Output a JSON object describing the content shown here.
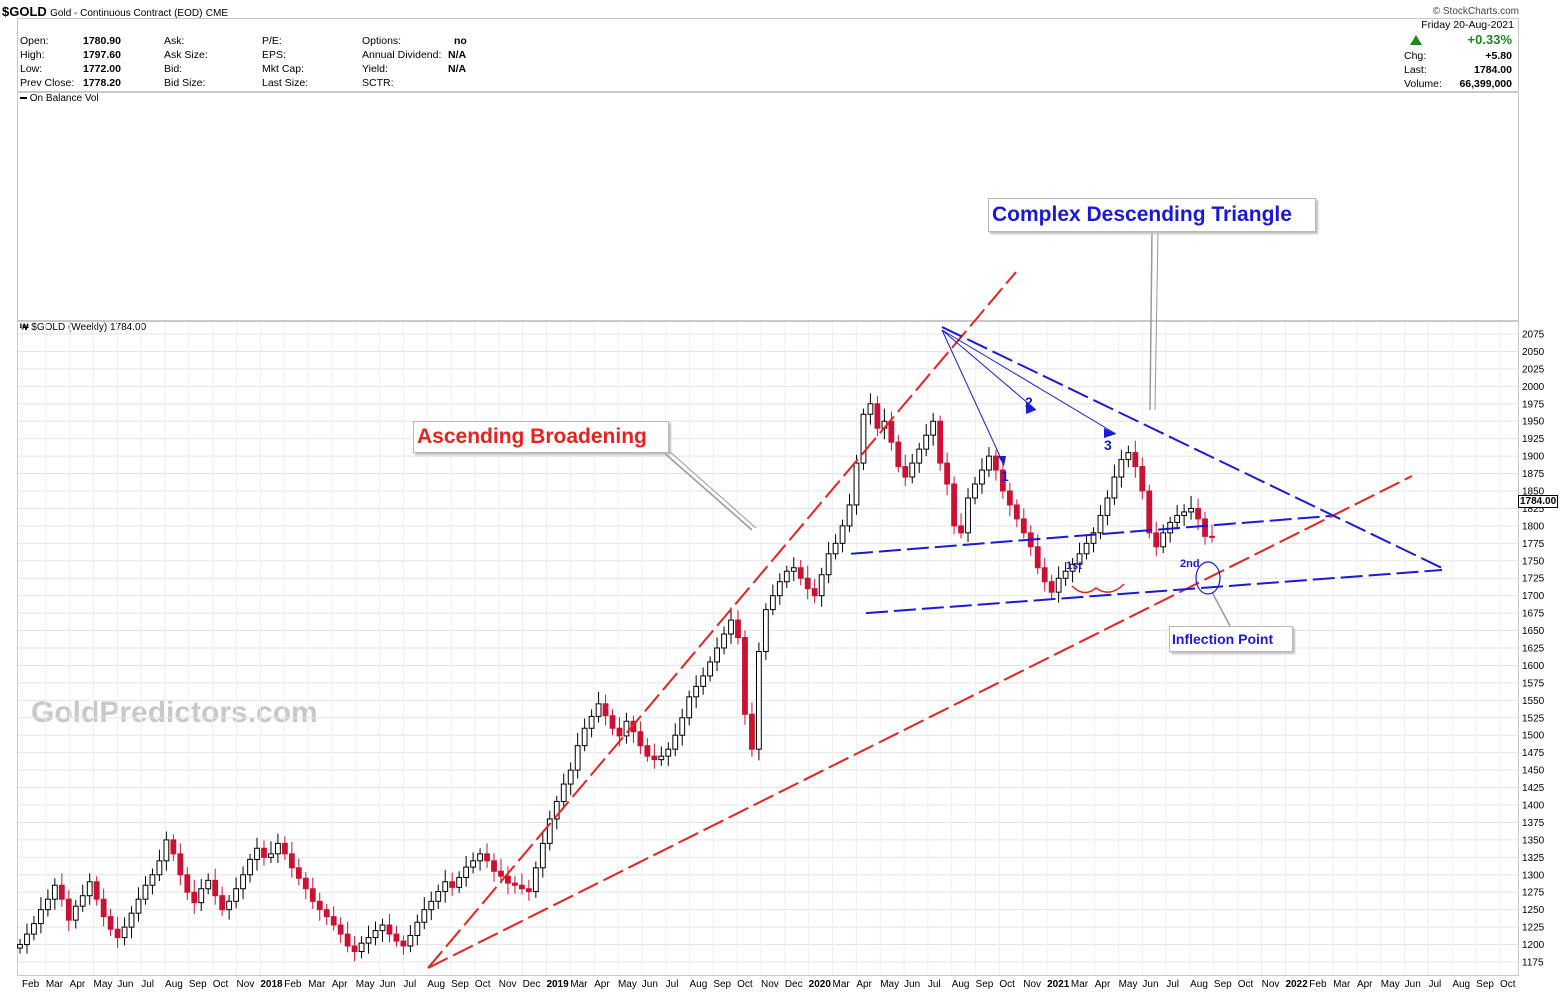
{
  "header": {
    "symbol": "$GOLD",
    "name": "Gold - Continuous Contract (EOD)",
    "exchange": "CME",
    "source": "© StockCharts.com",
    "date": "Friday  20-Aug-2021",
    "change_pct": "+0.33%"
  },
  "quote": {
    "open_label": "Open:",
    "open": "1780.90",
    "high_label": "High:",
    "high": "1797.60",
    "low_label": "Low:",
    "low": "1772.00",
    "prev_label": "Prev Close:",
    "prev": "1778.20",
    "ask_label": "Ask:",
    "ask_size_label": "Ask Size:",
    "bid_label": "Bid:",
    "bid_size_label": "Bid Size:",
    "pe_label": "P/E:",
    "eps_label": "EPS:",
    "mktcap_label": "Mkt Cap:",
    "lastsize_label": "Last Size:",
    "options_label": "Options:",
    "options": "no",
    "div_label": "Annual Dividend:",
    "div": "N/A",
    "yield_label": "Yield:",
    "yield": "N/A",
    "sctr_label": "SCTR:",
    "chg_label": "Chg:",
    "chg": "+5.80",
    "last_label": "Last:",
    "last": "1784.00",
    "volume_label": "Volume:",
    "volume": "66,399,000"
  },
  "indicator_label": "On Balance Vol",
  "price_panel_label": "$GOLD (Weekly) 1784.00",
  "watermark": "GoldPredictors.com",
  "annotations": {
    "ascending": "Ascending Broadening",
    "descending": "Complex Descending Triangle",
    "inflection": "Inflection Point",
    "wave1": "1",
    "wave2": "2",
    "wave3": "3",
    "first": "1st",
    "second": "2nd"
  },
  "colors": {
    "up": "#000000",
    "down": "#cc1133",
    "red_line": "#e8221f",
    "blue_line": "#1a1ad6",
    "grid": "#e4e4e4"
  },
  "chart_data": {
    "type": "candlestick",
    "title": "$GOLD (Weekly) 1784.00",
    "ylim": [
      1160,
      2090
    ],
    "y_ticks": [
      1175,
      1200,
      1225,
      1250,
      1275,
      1300,
      1325,
      1350,
      1375,
      1400,
      1425,
      1450,
      1475,
      1500,
      1525,
      1550,
      1575,
      1600,
      1625,
      1650,
      1675,
      1700,
      1725,
      1750,
      1775,
      1800,
      1825,
      1850,
      1875,
      1900,
      1925,
      1950,
      1975,
      2000,
      2025,
      2050,
      2075
    ],
    "last_price": "1784.00",
    "x_labels": [
      "Feb",
      "Mar",
      "Apr",
      "May",
      "Jun",
      "Jul",
      "Aug",
      "Sep",
      "Oct",
      "Nov",
      "2018",
      "Feb",
      "Mar",
      "Apr",
      "May",
      "Jun",
      "Jul",
      "Aug",
      "Sep",
      "Oct",
      "Nov",
      "Dec",
      "2019",
      "Mar",
      "Apr",
      "May",
      "Jun",
      "Jul",
      "Aug",
      "Sep",
      "Oct",
      "Nov",
      "Dec",
      "2020",
      "Mar",
      "Apr",
      "May",
      "Jun",
      "Jul",
      "Aug",
      "Sep",
      "Oct",
      "Nov",
      "2021",
      "Mar",
      "Apr",
      "May",
      "Jun",
      "Jul",
      "Aug",
      "Sep",
      "Oct",
      "Nov",
      "2022",
      "Feb",
      "Mar",
      "Apr",
      "May",
      "Jun",
      "Jul",
      "Aug",
      "Sep",
      "Oct"
    ],
    "closes_weekly": [
      1200,
      1215,
      1230,
      1250,
      1265,
      1285,
      1265,
      1235,
      1255,
      1270,
      1290,
      1265,
      1240,
      1222,
      1210,
      1225,
      1245,
      1265,
      1285,
      1300,
      1320,
      1350,
      1330,
      1300,
      1275,
      1260,
      1280,
      1292,
      1270,
      1250,
      1262,
      1280,
      1300,
      1322,
      1338,
      1325,
      1330,
      1345,
      1330,
      1310,
      1295,
      1280,
      1262,
      1250,
      1240,
      1228,
      1215,
      1198,
      1190,
      1202,
      1210,
      1220,
      1228,
      1215,
      1205,
      1198,
      1213,
      1232,
      1250,
      1262,
      1276,
      1290,
      1282,
      1296,
      1311,
      1320,
      1330,
      1320,
      1305,
      1298,
      1288,
      1285,
      1280,
      1276,
      1310,
      1345,
      1380,
      1405,
      1430,
      1450,
      1485,
      1510,
      1527,
      1545,
      1528,
      1510,
      1499,
      1520,
      1505,
      1485,
      1470,
      1465,
      1470,
      1480,
      1500,
      1525,
      1555,
      1570,
      1585,
      1605,
      1625,
      1645,
      1665,
      1640,
      1530,
      1480,
      1620,
      1680,
      1700,
      1720,
      1735,
      1740,
      1725,
      1710,
      1700,
      1730,
      1760,
      1775,
      1800,
      1830,
      1890,
      1960,
      1975,
      1940,
      1950,
      1920,
      1885,
      1870,
      1890,
      1910,
      1930,
      1950,
      1890,
      1860,
      1800,
      1790,
      1840,
      1860,
      1880,
      1900,
      1880,
      1850,
      1830,
      1810,
      1790,
      1770,
      1740,
      1720,
      1705,
      1725,
      1735,
      1745,
      1760,
      1775,
      1790,
      1815,
      1840,
      1870,
      1895,
      1905,
      1885,
      1850,
      1790,
      1770,
      1790,
      1805,
      1815,
      1820,
      1825,
      1810,
      1785,
      1784
    ],
    "annotation_levels": {
      "triangle_support_upper": 1760,
      "triangle_support_lower": 1675,
      "peak": 2075,
      "low_2018": 1170
    }
  }
}
